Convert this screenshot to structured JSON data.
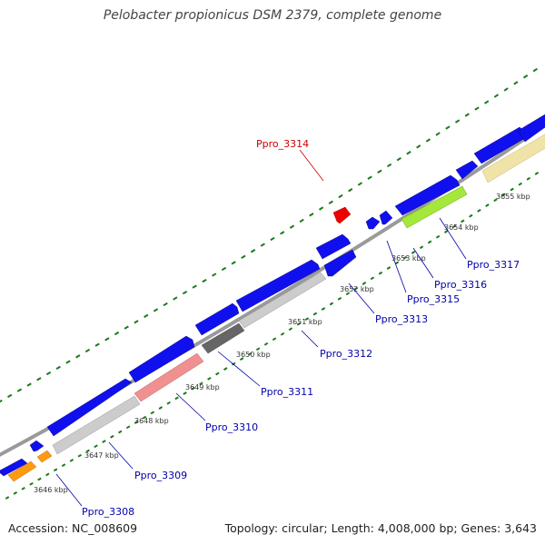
{
  "title": "Pelobacter propionicus DSM 2379, complete genome",
  "footer": {
    "accession": "Accession: NC_008609",
    "info": "Topology: circular; Length: 4,008,000 bp; Genes: 3,643"
  },
  "colors": {
    "backbone": "#9a9a9a",
    "cds_blue": "#1010ee",
    "gene_grey": "#cccccc",
    "gene_dark": "#666666",
    "gene_pink": "#f09090",
    "gene_green": "#a3e83a",
    "gene_yellow": "#efe3a8",
    "gene_orange": "#ff9a10",
    "highlight_red": "#ee0000",
    "tick_green": "#1a7a1a",
    "label_blue": "#0000aa"
  },
  "kbp_ticks": [
    "3646 kbp",
    "3647 kbp",
    "3648 kbp",
    "3649 kbp",
    "3650 kbp",
    "3651 kbp",
    "3652 kbp",
    "3653 kbp",
    "3654 kbp",
    "3655 kbp"
  ],
  "gene_labels": [
    {
      "name": "Ppro_3308",
      "color": "#0000aa"
    },
    {
      "name": "Ppro_3309",
      "color": "#0000aa"
    },
    {
      "name": "Ppro_3310",
      "color": "#0000aa"
    },
    {
      "name": "Ppro_3311",
      "color": "#0000aa"
    },
    {
      "name": "Ppro_3312",
      "color": "#0000aa"
    },
    {
      "name": "Ppro_3313",
      "color": "#0000aa"
    },
    {
      "name": "Ppro_3314",
      "color": "#cc0000"
    },
    {
      "name": "Ppro_3315",
      "color": "#0000aa"
    },
    {
      "name": "Ppro_3316",
      "color": "#0000aa"
    },
    {
      "name": "Ppro_3317",
      "color": "#0000aa"
    }
  ]
}
